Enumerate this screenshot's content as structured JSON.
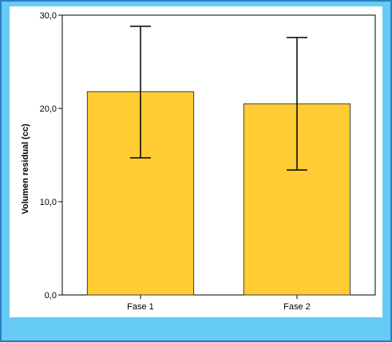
{
  "chart_data": {
    "type": "bar",
    "title": "",
    "xlabel": "",
    "ylabel": "Volumen residual (cc)",
    "ylim": [
      0,
      30
    ],
    "yticks": [
      0,
      10,
      20,
      30
    ],
    "ytick_labels": [
      "0,0",
      "10,0",
      "20,0",
      "30,0"
    ],
    "categories": [
      "Fase 1",
      "Fase 2"
    ],
    "values": [
      21.8,
      20.5
    ],
    "error_low": [
      14.7,
      13.4
    ],
    "error_high": [
      28.8,
      27.6
    ],
    "grid": false,
    "colors": {
      "bar": "#ffcc33",
      "bar_edge": "#3d3d3d",
      "frame_bg": "#66ccf5",
      "frame_border": "#2b7ec0"
    }
  }
}
